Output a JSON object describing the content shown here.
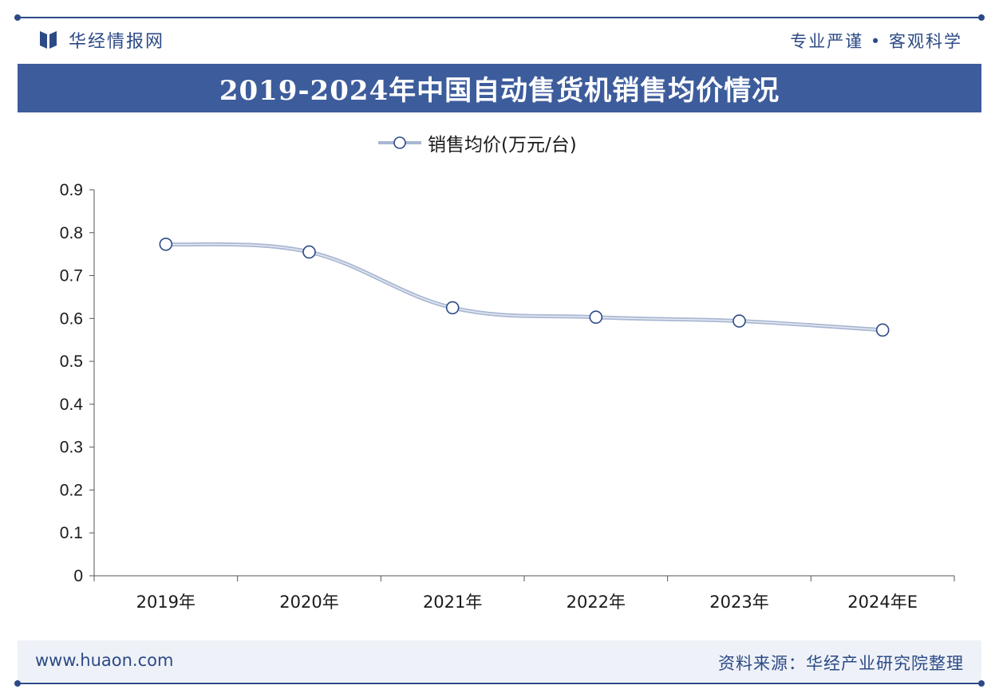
{
  "header": {
    "brand": "华经情报网",
    "slogan": "专业严谨 • 客观科学"
  },
  "chart_data": {
    "type": "line",
    "title": "2019-2024年中国自动售货机销售均价情况",
    "categories": [
      "2019年",
      "2020年",
      "2021年",
      "2022年",
      "2023年",
      "2024年E"
    ],
    "series": [
      {
        "name": "销售均价(万元/台)",
        "values": [
          0.773,
          0.755,
          0.625,
          0.603,
          0.594,
          0.573
        ]
      }
    ],
    "ylim": [
      0,
      0.9
    ],
    "yticks": [
      "0",
      "0.1",
      "0.2",
      "0.3",
      "0.4",
      "0.5",
      "0.6",
      "0.7",
      "0.8",
      "0.9"
    ],
    "grid": false,
    "legend_position": "top-center",
    "line_color": "#a9b7d3",
    "marker_stroke": "#2c4a86"
  },
  "footer": {
    "site": "www.huaon.com",
    "source": "资料来源：华经产业研究院整理"
  },
  "colors": {
    "brand": "#2c4a86",
    "title_bar": "#3d5c9c"
  }
}
